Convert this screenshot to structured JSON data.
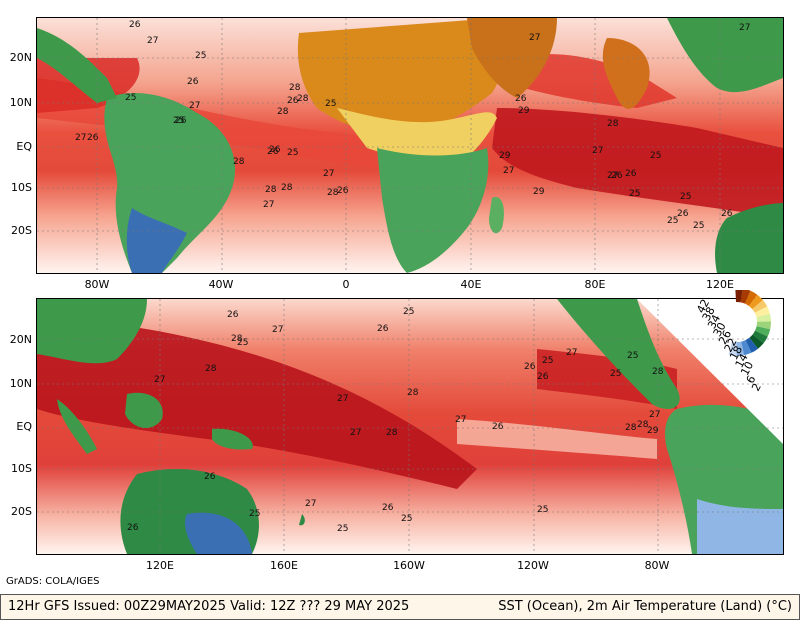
{
  "top_panel": {
    "lat_labels": [
      "20N",
      "10N",
      "EQ",
      "10S",
      "20S"
    ],
    "lon_labels": [
      "80W",
      "40W",
      "0",
      "40E",
      "80E",
      "120E"
    ],
    "contour_labels": [
      "26",
      "27",
      "25",
      "26",
      "25",
      "27",
      "26",
      "27",
      "26",
      "28",
      "28",
      "26",
      "25",
      "26",
      "28",
      "25",
      "26",
      "25",
      "28",
      "27",
      "28",
      "28",
      "27",
      "26",
      "28",
      "27",
      "26",
      "29",
      "29",
      "27",
      "29",
      "28",
      "27",
      "26",
      "27",
      "25",
      "26",
      "25",
      "25",
      "26",
      "25",
      "26",
      "25",
      "27"
    ]
  },
  "bottom_panel": {
    "lat_labels": [
      "20N",
      "10N",
      "EQ",
      "10S",
      "20S"
    ],
    "lon_labels": [
      "120E",
      "160E",
      "160W",
      "120W",
      "80W"
    ],
    "contour_labels": [
      "25",
      "26",
      "27",
      "26",
      "25",
      "28",
      "27",
      "28",
      "27",
      "28",
      "27",
      "26",
      "26",
      "25",
      "26",
      "27",
      "28",
      "25",
      "25",
      "27",
      "28",
      "28",
      "29",
      "27",
      "28",
      "26",
      "25",
      "26",
      "25",
      "25",
      "26",
      "27",
      "25"
    ]
  },
  "legend": {
    "labels": [
      "42",
      "38",
      "34",
      "30",
      "26",
      "22",
      "18",
      "14",
      "10",
      "6",
      "2"
    ],
    "colors": [
      "#7a1e00",
      "#a73a00",
      "#d46a00",
      "#ee9a1e",
      "#f6c96a",
      "#fff0a0",
      "#d9f0a0",
      "#9cd47c",
      "#4fae5a",
      "#1e7a3a",
      "#0c5a2a",
      "#1f5fae",
      "#4f8ad0",
      "#8fb6e4",
      "#c6d8f2"
    ]
  },
  "credit": "GrADS: COLA/IGES",
  "footer": {
    "left": "12Hr GFS Issued: 00Z29MAY2025 Valid: 12Z ??? 29 MAY 2025",
    "right": "SST (Ocean), 2m Air Temperature (Land) (°C)"
  },
  "colors": {
    "ocean_warm": "#e8483a",
    "ocean_hot": "#b8141c",
    "ocean_mild": "#f7a08c",
    "ocean_cool": "#fde4dc",
    "land_desert": "#d98a1a",
    "land_veg": "#3e9a4a",
    "land_cold": "#3b6fb4"
  }
}
